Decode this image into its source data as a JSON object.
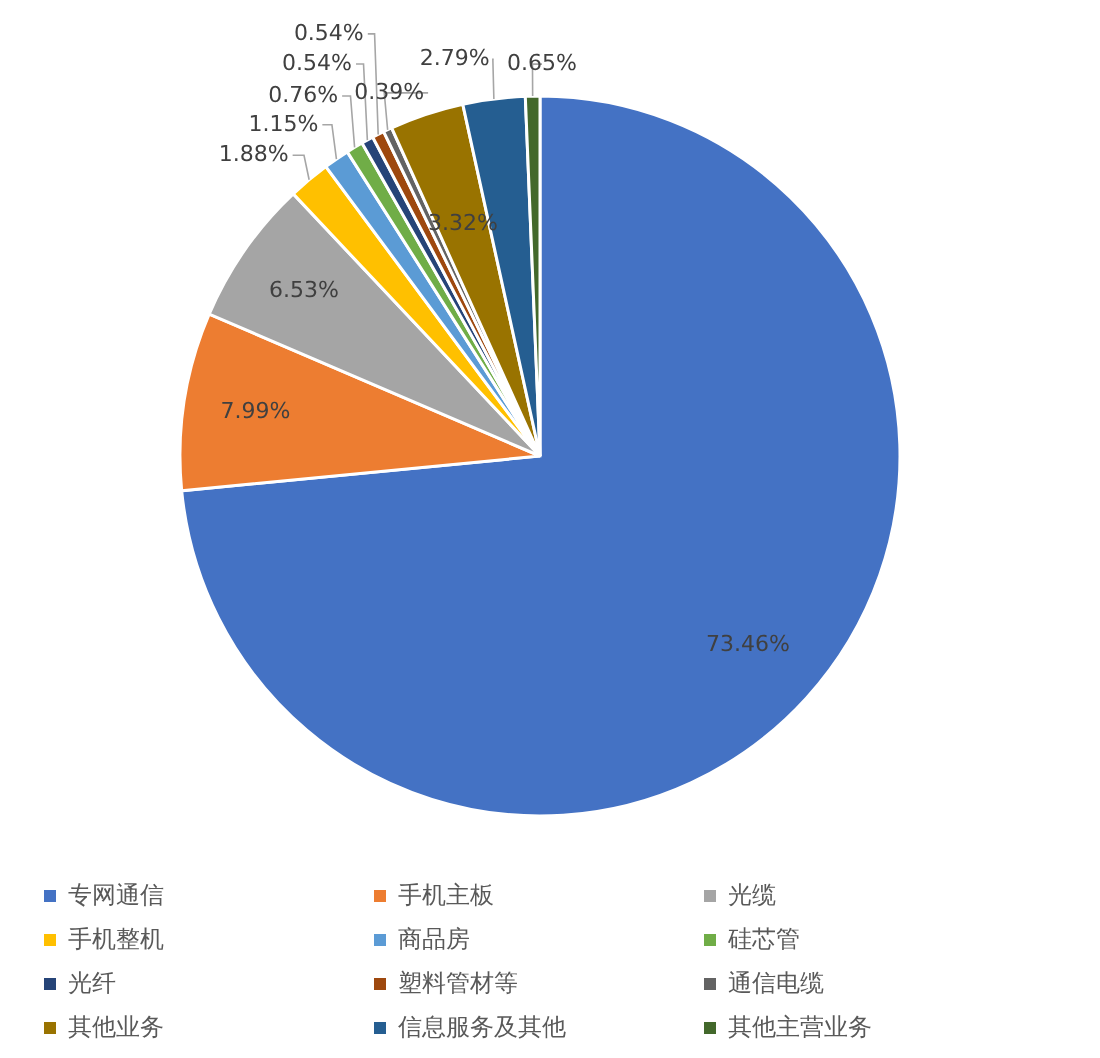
{
  "chart_data": {
    "type": "pie",
    "categories": [
      "专网通信",
      "手机主板",
      "光缆",
      "手机整机",
      "商品房",
      "硅芯管",
      "光纤",
      "塑料管材等",
      "通信电缆",
      "其他业务",
      "信息服务及其他",
      "其他主营业务"
    ],
    "values": [
      73.46,
      7.99,
      6.53,
      1.88,
      1.15,
      0.76,
      0.54,
      0.54,
      0.39,
      3.32,
      2.79,
      0.65
    ],
    "colors": [
      "#4472c4",
      "#ed7d31",
      "#a5a5a5",
      "#ffc000",
      "#5b9bd5",
      "#70ad47",
      "#264478",
      "#9e480e",
      "#636363",
      "#997300",
      "#255e91",
      "#43682b"
    ],
    "value_labels": [
      "73.46%",
      "7.99%",
      "6.53%",
      "1.88%",
      "1.15%",
      "0.76%",
      "0.54%",
      "0.54%",
      "0.39%",
      "3.32%",
      "2.79%",
      "0.65%"
    ],
    "legend": "bottom"
  }
}
